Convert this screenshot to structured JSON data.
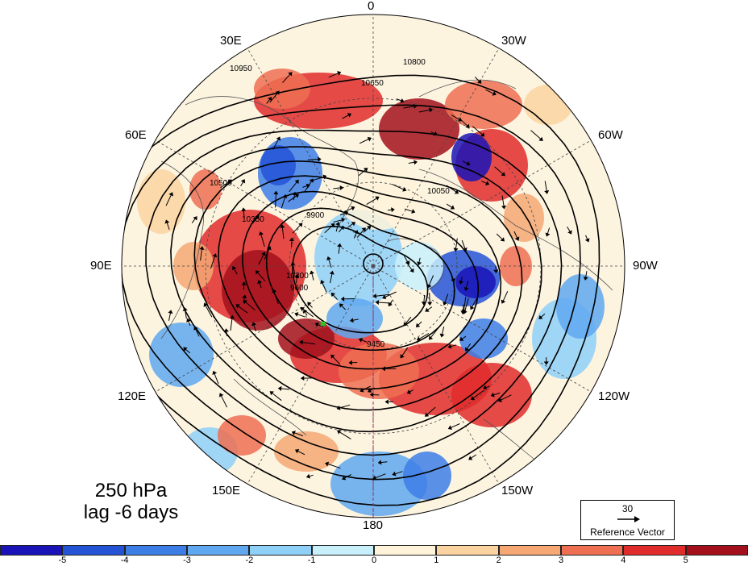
{
  "title_lines": [
    "250 hPa",
    "lag -6 days"
  ],
  "longitude_labels": {
    "top": "0",
    "bottom": "180",
    "upper_left": "30E",
    "upper_right": "30W",
    "mid_left_upper": "60E",
    "mid_right_upper": "60W",
    "left": "90E",
    "right": "90W",
    "lower_left": "120E",
    "lower_right": "120W",
    "bottom_left": "150E",
    "bottom_right": "150W"
  },
  "contour_labels": [
    "10800",
    "10650",
    "10950",
    "10500",
    "10350",
    "10200",
    "9900",
    "9600",
    "9450",
    "10050"
  ],
  "reference_vector": {
    "magnitude": "30",
    "caption": "Reference Vector"
  },
  "colorbar": {
    "colors": [
      "#1a14b8",
      "#2553d6",
      "#3d7ee6",
      "#5fa8f0",
      "#8fd0f8",
      "#c8f0fb",
      "#fff3d9",
      "#fbd3a0",
      "#f5a874",
      "#ef6f52",
      "#e12c2c",
      "#a3101c"
    ],
    "labels": [
      "-5",
      "-4",
      "-3",
      "-2",
      "-1",
      "0",
      "1",
      "2",
      "3",
      "4",
      "5"
    ]
  },
  "colors": {
    "height_contour": "#000000",
    "meridian_dash": "#9a2a6a",
    "marker": "#22cc22"
  }
}
